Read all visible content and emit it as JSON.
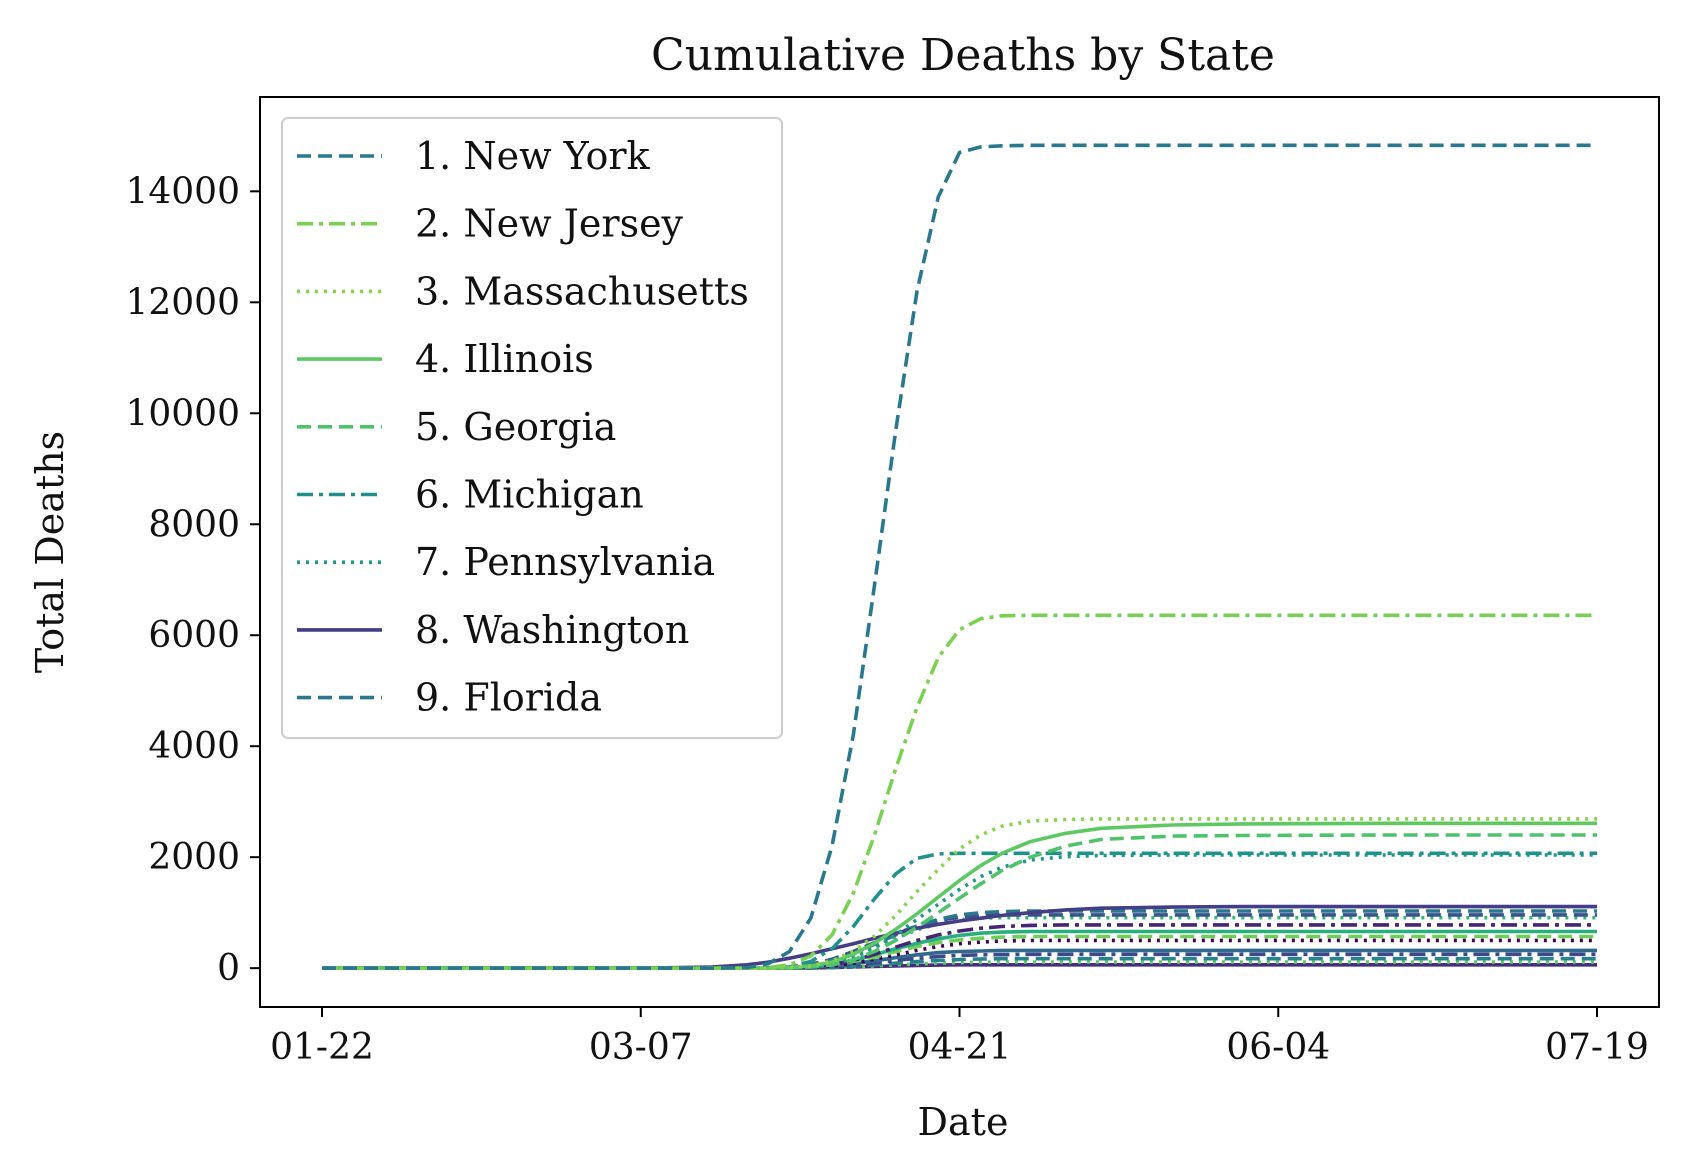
{
  "chart_data": {
    "type": "line",
    "title": "Cumulative Deaths by State",
    "xlabel": "Date",
    "ylabel": "Total Deaths",
    "x_ticks": [
      "01-22",
      "03-07",
      "04-21",
      "06-04",
      "07-19"
    ],
    "x_tick_days": [
      0,
      45,
      90,
      135,
      180
    ],
    "x_days": [
      0,
      45,
      55,
      60,
      63,
      66,
      69,
      72,
      75,
      78,
      81,
      84,
      87,
      90,
      93,
      96,
      100,
      105,
      110,
      120,
      130,
      150,
      180
    ],
    "y_ticks": [
      0,
      2000,
      4000,
      6000,
      8000,
      10000,
      12000,
      14000
    ],
    "ylim": [
      -700,
      15700
    ],
    "grid": false,
    "legend_position": "upper-left",
    "series": [
      {
        "name": "1. New York",
        "color": "#2a788e",
        "style": "dashed",
        "legend": true,
        "values": [
          0,
          0,
          0,
          10,
          80,
          300,
          900,
          2200,
          4200,
          6900,
          9700,
          12200,
          13900,
          14700,
          14800,
          14820,
          14830,
          14830,
          14830,
          14830,
          14830,
          14830,
          14830
        ]
      },
      {
        "name": "2. New Jersey",
        "color": "#7ad151",
        "style": "dashdot",
        "legend": true,
        "values": [
          0,
          0,
          0,
          0,
          10,
          60,
          220,
          600,
          1350,
          2400,
          3600,
          4700,
          5600,
          6100,
          6300,
          6350,
          6360,
          6360,
          6360,
          6360,
          6360,
          6360,
          6360
        ]
      },
      {
        "name": "3. Massachusetts",
        "color": "#86d549",
        "style": "dotted",
        "legend": true,
        "values": [
          0,
          0,
          0,
          0,
          0,
          10,
          40,
          130,
          300,
          580,
          950,
          1380,
          1780,
          2150,
          2400,
          2560,
          2650,
          2680,
          2690,
          2690,
          2690,
          2690,
          2690
        ]
      },
      {
        "name": "4. Illinois",
        "color": "#5ec962",
        "style": "solid",
        "legend": true,
        "values": [
          0,
          0,
          0,
          0,
          0,
          10,
          40,
          110,
          250,
          450,
          700,
          980,
          1280,
          1580,
          1850,
          2070,
          2280,
          2430,
          2520,
          2580,
          2600,
          2610,
          2610
        ]
      },
      {
        "name": "5. Georgia",
        "color": "#4ec36b",
        "style": "dashed",
        "legend": true,
        "values": [
          0,
          0,
          0,
          0,
          0,
          5,
          20,
          60,
          150,
          300,
          500,
          740,
          1000,
          1260,
          1520,
          1760,
          2000,
          2200,
          2320,
          2380,
          2390,
          2400,
          2400
        ]
      },
      {
        "name": "6. Michigan",
        "color": "#21918c",
        "style": "dashdot",
        "legend": true,
        "values": [
          0,
          0,
          0,
          0,
          5,
          30,
          120,
          350,
          750,
          1250,
          1700,
          1980,
          2060,
          2070,
          2070,
          2070,
          2070,
          2070,
          2070,
          2070,
          2070,
          2070,
          2070
        ]
      },
      {
        "name": "7. Pennsylvania",
        "color": "#1f9a8a",
        "style": "dotted",
        "legend": true,
        "values": [
          0,
          0,
          0,
          0,
          0,
          5,
          20,
          70,
          180,
          360,
          600,
          880,
          1150,
          1420,
          1650,
          1820,
          1950,
          2010,
          2030,
          2040,
          2040,
          2040,
          2040
        ]
      },
      {
        "name": "8. Washington",
        "color": "#433e85",
        "style": "solid",
        "legend": true,
        "values": [
          0,
          0,
          20,
          60,
          110,
          180,
          260,
          350,
          440,
          540,
          630,
          720,
          790,
          850,
          900,
          950,
          1000,
          1050,
          1080,
          1100,
          1110,
          1110,
          1110
        ]
      },
      {
        "name": "9. Florida",
        "color": "#2a788e",
        "style": "dashed",
        "legend": true,
        "values": [
          0,
          0,
          0,
          0,
          5,
          20,
          60,
          140,
          270,
          430,
          600,
          760,
          880,
          960,
          1000,
          1020,
          1030,
          1030,
          1030,
          1030,
          1030,
          1030,
          1030
        ]
      },
      {
        "color": "#3b528b",
        "style": "dashed",
        "legend": false,
        "values": [
          0,
          0,
          0,
          0,
          5,
          20,
          70,
          160,
          300,
          460,
          620,
          760,
          860,
          920,
          950,
          960,
          960,
          960,
          960,
          960,
          960,
          960,
          960
        ]
      },
      {
        "color": "#35b779",
        "style": "dotted",
        "legend": false,
        "values": [
          0,
          0,
          0,
          0,
          0,
          10,
          40,
          110,
          230,
          380,
          540,
          690,
          800,
          870,
          900,
          910,
          910,
          910,
          910,
          910,
          910,
          910,
          910
        ]
      },
      {
        "color": "#482475",
        "style": "dashdot",
        "legend": false,
        "values": [
          0,
          0,
          0,
          0,
          0,
          5,
          20,
          60,
          140,
          250,
          380,
          500,
          600,
          670,
          720,
          750,
          770,
          780,
          780,
          780,
          780,
          780,
          780
        ]
      },
      {
        "color": "#29af7f",
        "style": "solid",
        "legend": false,
        "values": [
          0,
          0,
          0,
          0,
          0,
          5,
          25,
          70,
          140,
          240,
          350,
          450,
          530,
          590,
          630,
          650,
          660,
          660,
          660,
          660,
          660,
          660,
          660
        ]
      },
      {
        "color": "#6ece58",
        "style": "dashed",
        "legend": false,
        "values": [
          0,
          0,
          0,
          0,
          0,
          5,
          20,
          60,
          120,
          200,
          300,
          390,
          460,
          510,
          540,
          560,
          570,
          570,
          570,
          570,
          570,
          570,
          570
        ]
      },
      {
        "color": "#440154",
        "style": "dotted",
        "legend": false,
        "values": [
          0,
          0,
          0,
          0,
          0,
          5,
          15,
          40,
          90,
          160,
          240,
          320,
          390,
          440,
          470,
          490,
          500,
          500,
          500,
          500,
          500,
          500,
          500
        ]
      },
      {
        "color": "#31688e",
        "style": "solid",
        "legend": false,
        "values": [
          0,
          0,
          0,
          0,
          0,
          5,
          15,
          40,
          80,
          130,
          190,
          240,
          280,
          300,
          310,
          320,
          320,
          320,
          320,
          320,
          320,
          320,
          320
        ]
      },
      {
        "color": "#3e4989",
        "style": "dashdot",
        "legend": false,
        "values": [
          0,
          0,
          0,
          0,
          0,
          0,
          10,
          25,
          55,
          95,
          140,
          180,
          210,
          230,
          240,
          245,
          250,
          250,
          250,
          250,
          250,
          250,
          250
        ]
      },
      {
        "color": "#26828e",
        "style": "dashed",
        "legend": false,
        "values": [
          0,
          0,
          0,
          0,
          0,
          0,
          5,
          15,
          35,
          60,
          90,
          120,
          140,
          155,
          165,
          170,
          170,
          170,
          170,
          170,
          170,
          170,
          170
        ]
      },
      {
        "color": "#5ec962",
        "style": "dotted",
        "legend": false,
        "values": [
          0,
          0,
          0,
          0,
          0,
          0,
          5,
          10,
          25,
          40,
          60,
          75,
          90,
          100,
          105,
          110,
          110,
          110,
          110,
          110,
          110,
          110,
          110
        ]
      },
      {
        "color": "#472d7b",
        "style": "solid",
        "legend": false,
        "values": [
          0,
          0,
          0,
          0,
          0,
          0,
          5,
          10,
          20,
          30,
          40,
          50,
          55,
          60,
          60,
          60,
          60,
          60,
          60,
          60,
          60,
          60,
          60
        ]
      }
    ]
  }
}
